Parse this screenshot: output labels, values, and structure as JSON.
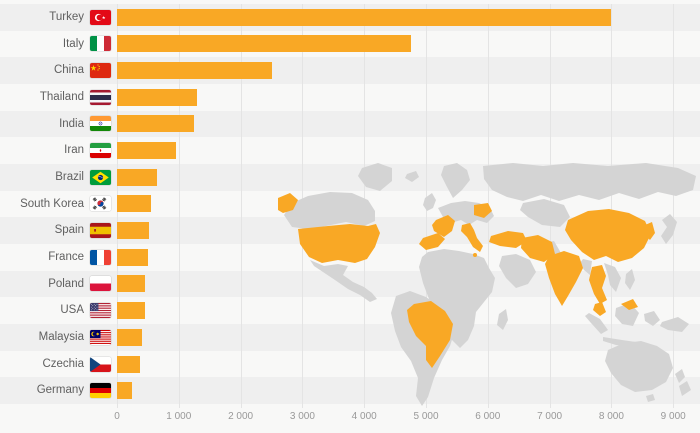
{
  "chart_data": {
    "type": "bar",
    "orientation": "horizontal",
    "title": "",
    "categories": [
      "Turkey",
      "Italy",
      "China",
      "Thailand",
      "India",
      "Iran",
      "Brazil",
      "South Korea",
      "Spain",
      "France",
      "Poland",
      "USA",
      "Malaysia",
      "Czechia",
      "Germany"
    ],
    "values": [
      8000,
      4750,
      2500,
      1300,
      1250,
      950,
      650,
      550,
      520,
      500,
      460,
      455,
      400,
      370,
      240
    ],
    "xlim": [
      0,
      9000
    ],
    "tick_step": 1000,
    "x_ticks": [
      "0",
      "1 000",
      "2 000",
      "3 000",
      "4 000",
      "5 000",
      "6 000",
      "7 000",
      "8 000",
      "9 000"
    ],
    "grid": true,
    "legend": false,
    "flag_icons": [
      "turkey-flag-icon",
      "italy-flag-icon",
      "china-flag-icon",
      "thailand-flag-icon",
      "india-flag-icon",
      "iran-flag-icon",
      "brazil-flag-icon",
      "south-korea-flag-icon",
      "spain-flag-icon",
      "france-flag-icon",
      "poland-flag-icon",
      "usa-flag-icon",
      "malaysia-flag-icon",
      "czechia-flag-icon",
      "germany-flag-icon"
    ],
    "map_highlighted_countries": [
      "USA",
      "Brazil",
      "Spain",
      "France",
      "Italy",
      "Poland",
      "Turkey",
      "Iran",
      "India",
      "China",
      "Thailand",
      "Malaysia",
      "South Korea"
    ],
    "colors": {
      "bar": "#F9A825",
      "map_base": "#D4D4D4",
      "map_highlight": "#F9A825",
      "row_stripe": "#EFEFEF",
      "background": "#F8F8F7",
      "gridline": "#E4E4E4",
      "label_text": "#5F5F5F",
      "tick_text": "#999999"
    }
  }
}
